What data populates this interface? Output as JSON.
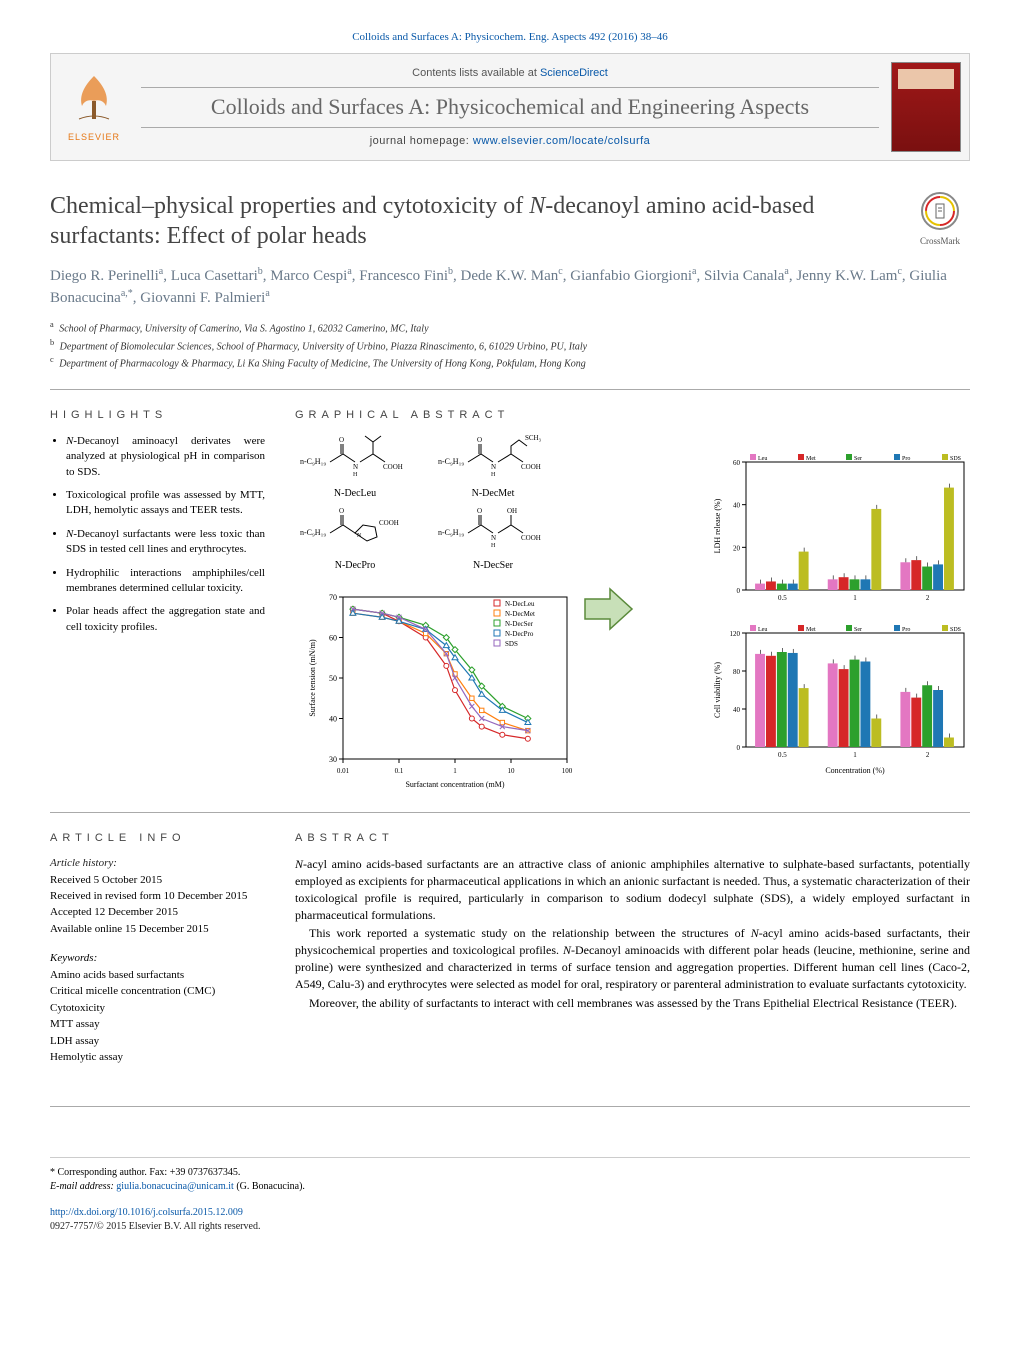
{
  "header": {
    "citation": "Colloids and Surfaces A: Physicochem. Eng. Aspects 492 (2016) 38–46",
    "contents_prefix": "Contents lists available at ",
    "contents_link": "ScienceDirect",
    "journal_title": "Colloids and Surfaces A: Physicochemical and Engineering Aspects",
    "homepage_prefix": "journal homepage: ",
    "homepage_url": "www.elsevier.com/locate/colsurfa",
    "elsevier": "ELSEVIER"
  },
  "article": {
    "title_pre": "Chemical–physical properties and cytotoxicity of ",
    "title_ital": "N",
    "title_post": "-decanoyl amino acid-based surfactants: Effect of polar heads",
    "crossmark": "CrossMark"
  },
  "authors": [
    {
      "name": "Diego R. Perinelli",
      "aff": "a"
    },
    {
      "name": "Luca Casettari",
      "aff": "b"
    },
    {
      "name": "Marco Cespi",
      "aff": "a"
    },
    {
      "name": "Francesco Fini",
      "aff": "b"
    },
    {
      "name": "Dede K.W. Man",
      "aff": "c"
    },
    {
      "name": "Gianfabio Giorgioni",
      "aff": "a"
    },
    {
      "name": "Silvia Canala",
      "aff": "a"
    },
    {
      "name": "Jenny K.W. Lam",
      "aff": "c"
    },
    {
      "name": "Giulia Bonacucina",
      "aff": "a,*"
    },
    {
      "name": "Giovanni F. Palmieri",
      "aff": "a"
    }
  ],
  "affiliations": [
    {
      "key": "a",
      "text": "School of Pharmacy, University of Camerino, Via S. Agostino 1, 62032 Camerino, MC, Italy"
    },
    {
      "key": "b",
      "text": "Department of Biomolecular Sciences, School of Pharmacy, University of Urbino, Piazza Rinascimento, 6, 61029 Urbino, PU, Italy"
    },
    {
      "key": "c",
      "text": "Department of Pharmacology & Pharmacy, Li Ka Shing Faculty of Medicine, The University of Hong Kong, Pokfulam, Hong Kong"
    }
  ],
  "sections": {
    "highlights": "HIGHLIGHTS",
    "graphical": "GRAPHICAL ABSTRACT",
    "article_info": "ARTICLE INFO",
    "abstract": "ABSTRACT"
  },
  "highlights": [
    "N-Decanoyl aminoacyl derivates were analyzed at physiological pH in comparison to SDS.",
    "Toxicological profile was assessed by MTT, LDH, hemolytic assays and TEER tests.",
    "N-Decanoyl surfactants were less toxic than SDS in tested cell lines and erythrocytes.",
    "Hydrophilic interactions amphiphiles/cell membranes determined cellular toxicity.",
    "Polar heads affect the aggregation state and cell toxicity profiles."
  ],
  "graphical_abstract": {
    "structures": [
      {
        "label": "N-DecLeu"
      },
      {
        "label": "N-DecMet"
      },
      {
        "label": "N-DecPro"
      },
      {
        "label": "N-DecSer"
      }
    ],
    "tension_chart": {
      "type": "scatter-line",
      "xlabel": "Surfactant concentration (mM)",
      "ylabel": "Surface tension (mN/m)",
      "xscale": "log",
      "xlim": [
        0.01,
        100
      ],
      "ylim": [
        30,
        70
      ],
      "yticks": [
        30,
        40,
        50,
        60,
        70
      ],
      "legend": [
        "N-DecLeu",
        "N-DecMet",
        "N-DecSer",
        "N-DecPro",
        "SDS"
      ],
      "colors": [
        "#d62728",
        "#ff7f0e",
        "#2ca02c",
        "#1f77b4",
        "#9467bd"
      ],
      "series": {
        "N-DecLeu": [
          [
            0.015,
            67
          ],
          [
            0.05,
            66
          ],
          [
            0.1,
            64
          ],
          [
            0.3,
            60
          ],
          [
            0.7,
            53
          ],
          [
            1,
            47
          ],
          [
            2,
            40
          ],
          [
            3,
            38
          ],
          [
            7,
            36
          ],
          [
            20,
            35
          ]
        ],
        "N-DecMet": [
          [
            0.015,
            66
          ],
          [
            0.05,
            65
          ],
          [
            0.1,
            64
          ],
          [
            0.3,
            61
          ],
          [
            0.7,
            56
          ],
          [
            1,
            51
          ],
          [
            2,
            45
          ],
          [
            3,
            42
          ],
          [
            7,
            39
          ],
          [
            20,
            37
          ]
        ],
        "N-DecSer": [
          [
            0.015,
            67
          ],
          [
            0.05,
            66
          ],
          [
            0.1,
            65
          ],
          [
            0.3,
            63
          ],
          [
            0.7,
            60
          ],
          [
            1,
            57
          ],
          [
            2,
            52
          ],
          [
            3,
            48
          ],
          [
            7,
            43
          ],
          [
            20,
            40
          ]
        ],
        "N-DecPro": [
          [
            0.015,
            66
          ],
          [
            0.05,
            65
          ],
          [
            0.1,
            64
          ],
          [
            0.3,
            62
          ],
          [
            0.7,
            58
          ],
          [
            1,
            55
          ],
          [
            2,
            50
          ],
          [
            3,
            46
          ],
          [
            7,
            42
          ],
          [
            20,
            39
          ]
        ],
        "SDS": [
          [
            0.015,
            67
          ],
          [
            0.05,
            66
          ],
          [
            0.1,
            65
          ],
          [
            0.3,
            62
          ],
          [
            0.7,
            56
          ],
          [
            1,
            50
          ],
          [
            2,
            43
          ],
          [
            3,
            40
          ],
          [
            7,
            38
          ],
          [
            20,
            37
          ]
        ]
      }
    },
    "bar_chart_top": {
      "type": "bar",
      "ylabel": "LDH release (%)",
      "ylim": [
        0,
        60
      ],
      "yticks": [
        0,
        20,
        40,
        60
      ],
      "groups": [
        "0.5",
        "1",
        "2"
      ],
      "series": [
        "N-DecLeu",
        "N-DecMet",
        "N-DecSer",
        "N-DecPro",
        "SDS"
      ],
      "colors": [
        "#e377c2",
        "#d62728",
        "#2ca02c",
        "#1f77b4",
        "#bcbd22"
      ],
      "values": {
        "0.5": [
          3,
          4,
          3,
          3,
          18
        ],
        "1": [
          5,
          6,
          5,
          5,
          38
        ],
        "2": [
          13,
          14,
          11,
          12,
          48
        ]
      }
    },
    "bar_chart_bottom": {
      "type": "bar",
      "ylabel": "Cell viability (%)",
      "xlabel": "Concentration (%)",
      "ylim": [
        0,
        120
      ],
      "yticks": [
        0,
        40,
        80,
        120
      ],
      "groups": [
        "0.5",
        "1",
        "2"
      ],
      "series": [
        "N-DecLeu",
        "N-DecMet",
        "N-DecSer",
        "N-DecPro",
        "SDS"
      ],
      "colors": [
        "#e377c2",
        "#d62728",
        "#2ca02c",
        "#1f77b4",
        "#bcbd22"
      ],
      "values": {
        "0.5": [
          98,
          96,
          100,
          99,
          62
        ],
        "1": [
          88,
          82,
          92,
          90,
          30
        ],
        "2": [
          58,
          52,
          65,
          60,
          10
        ]
      }
    }
  },
  "article_info": {
    "history_label": "Article history:",
    "history": [
      "Received 5 October 2015",
      "Received in revised form 10 December 2015",
      "Accepted 12 December 2015",
      "Available online 15 December 2015"
    ],
    "keywords_label": "Keywords:",
    "keywords": [
      "Amino acids based surfactants",
      "Critical micelle concentration (CMC)",
      "Cytotoxicity",
      "MTT assay",
      "LDH assay",
      "Hemolytic assay"
    ]
  },
  "abstract": {
    "paragraphs": [
      "N-acyl amino acids-based surfactants are an attractive class of anionic amphiphiles alternative to sulphate-based surfactants, potentially employed as excipients for pharmaceutical applications in which an anionic surfactant is needed. Thus, a systematic characterization of their toxicological profile is required, particularly in comparison to sodium dodecyl sulphate (SDS), a widely employed surfactant in pharmaceutical formulations.",
      "This work reported a systematic study on the relationship between the structures of N-acyl amino acids-based surfactants, their physicochemical properties and toxicological profiles. N-Decanoyl aminoacids with different polar heads (leucine, methionine, serine and proline) were synthesized and characterized in terms of surface tension and aggregation properties. Different human cell lines (Caco-2, A549, Calu-3) and erythrocytes were selected as model for oral, respiratory or parenteral administration to evaluate surfactants cytotoxicity.",
      "Moreover, the ability of surfactants to interact with cell membranes was assessed by the Trans Epithelial Electrical Resistance (TEER)."
    ]
  },
  "footer": {
    "corresponding_label": "* Corresponding author. Fax: +39 0737637345.",
    "email_label": "E-mail address: ",
    "email": "giulia.bonacucina@unicam.it",
    "email_person": " (G. Bonacucina).",
    "doi": "http://dx.doi.org/10.1016/j.colsurfa.2015.12.009",
    "copyright": "0927-7757/© 2015 Elsevier B.V. All rights reserved."
  }
}
